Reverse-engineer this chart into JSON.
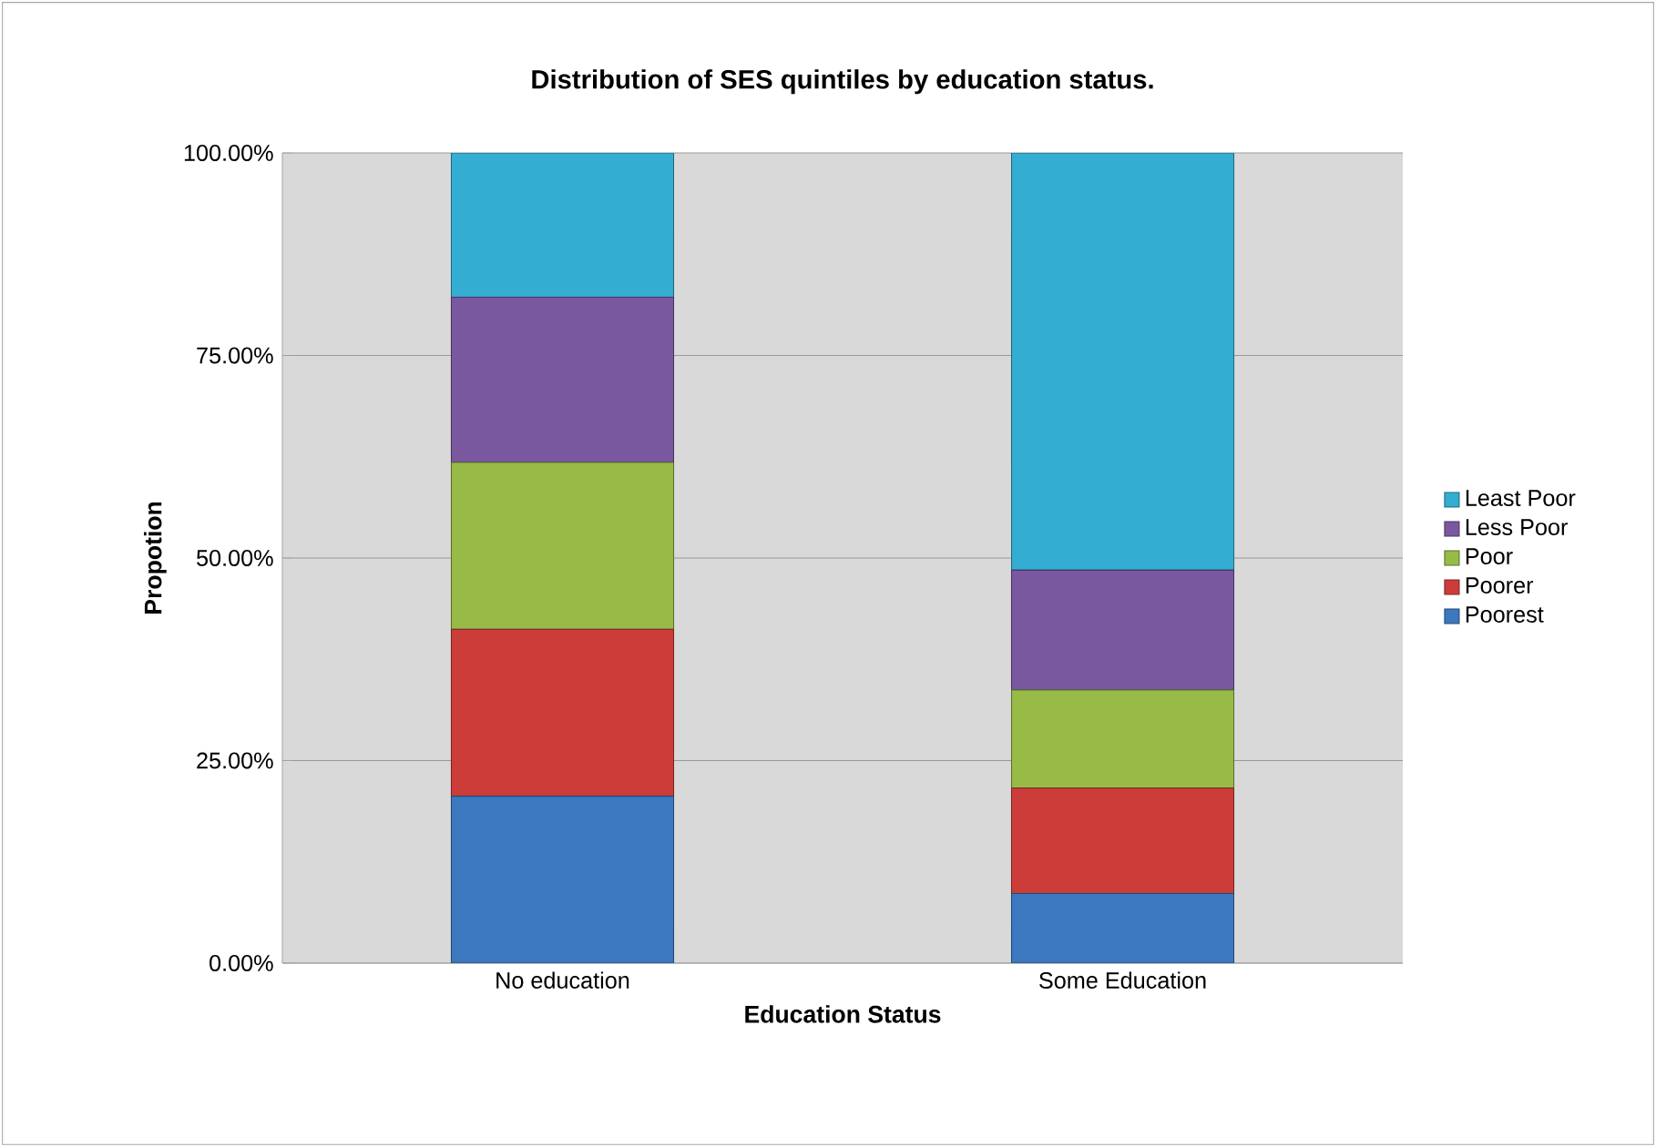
{
  "chart_data": {
    "type": "bar",
    "stacked": true,
    "title": "Distribution of SES quintiles by education status.",
    "xlabel": "Education Status",
    "ylabel": "Propotion",
    "categories": [
      "No education",
      "Some Education"
    ],
    "series": [
      {
        "name": "Poorest",
        "color": "#3c78c0",
        "values": [
          20.6,
          8.6
        ]
      },
      {
        "name": "Poorer",
        "color": "#cc3d3a",
        "values": [
          20.6,
          13.0
        ]
      },
      {
        "name": "Poor",
        "color": "#98bb48",
        "values": [
          20.6,
          12.1
        ]
      },
      {
        "name": "Less Poor",
        "color": "#7a58a0",
        "values": [
          20.4,
          14.8
        ]
      },
      {
        "name": "Least Poor",
        "color": "#33add2",
        "values": [
          17.8,
          51.5
        ]
      }
    ],
    "ylim": [
      0,
      100
    ],
    "yticks": [
      {
        "value": 0,
        "label": "0.00%"
      },
      {
        "value": 25,
        "label": "25.00%"
      },
      {
        "value": 50,
        "label": "50.00%"
      },
      {
        "value": 75,
        "label": "75.00%"
      },
      {
        "value": 100,
        "label": "100.00%"
      }
    ],
    "grid": "y",
    "legend": "right"
  }
}
